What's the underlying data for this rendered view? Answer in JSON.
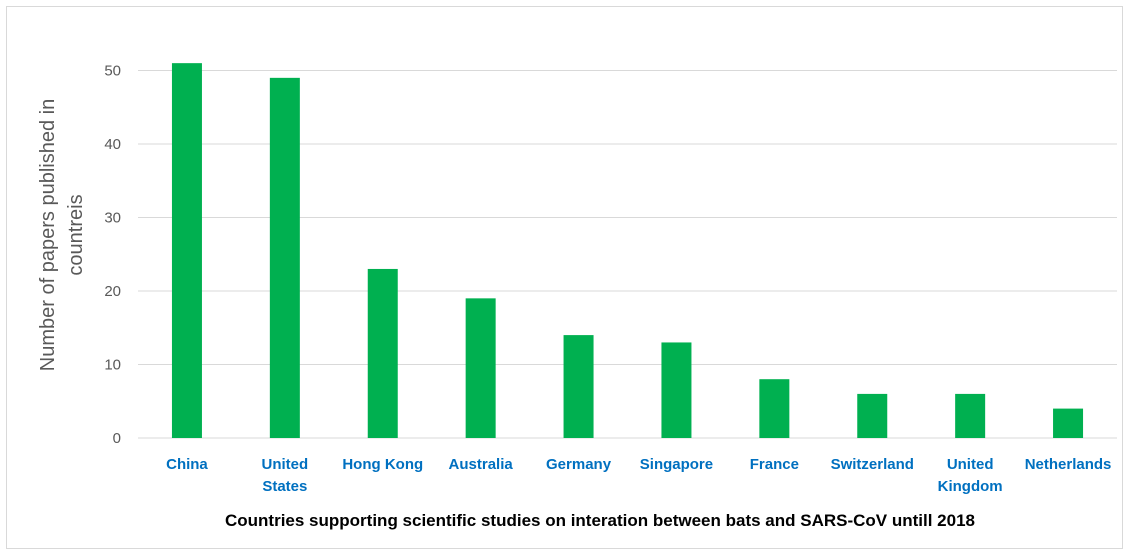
{
  "chart_data": {
    "type": "bar",
    "categories": [
      [
        "China"
      ],
      [
        "United",
        "States"
      ],
      [
        "Hong Kong"
      ],
      [
        "Australia"
      ],
      [
        "Germany"
      ],
      [
        "Singapore"
      ],
      [
        "France"
      ],
      [
        "Switzerland"
      ],
      [
        "United",
        "Kingdom"
      ],
      [
        "Netherlands"
      ]
    ],
    "values": [
      51,
      49,
      23,
      19,
      14,
      13,
      8,
      6,
      6,
      4
    ],
    "xlabel": "Countries supporting scientific studies on interation between bats and SARS-CoV untill 2018",
    "ylabel_lines": [
      "Number of  papers  published in",
      "countreis"
    ],
    "ylim": [
      0,
      50
    ],
    "yticks": [
      0,
      10,
      20,
      30,
      40,
      50
    ],
    "grid": true,
    "legend": "none",
    "colors": {
      "bar": "#00b050",
      "category_label": "#0070c0",
      "grid": "#d9d9d9"
    }
  }
}
